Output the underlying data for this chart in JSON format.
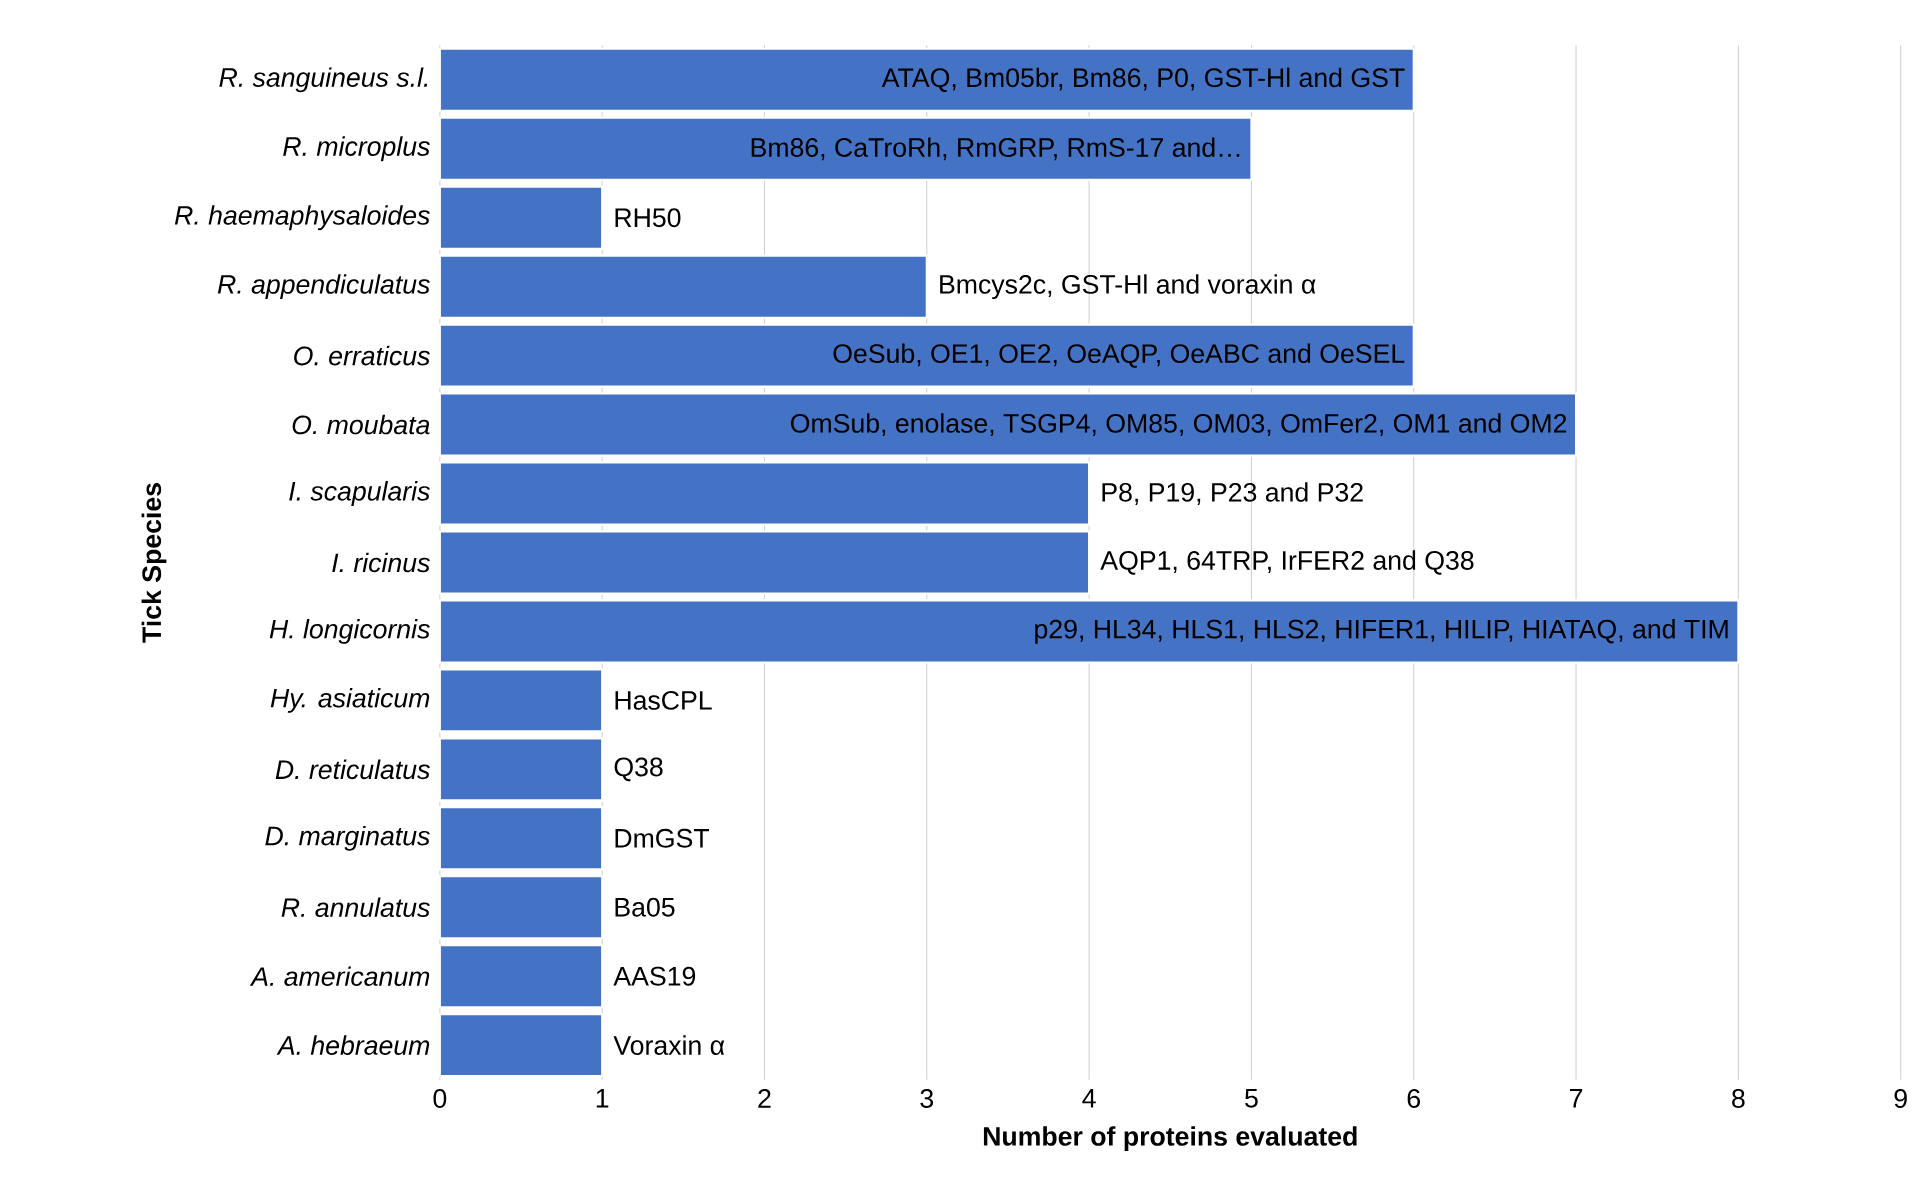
{
  "chart_data": {
    "type": "bar",
    "orientation": "horizontal",
    "ylabel": "Tick Species",
    "xlabel": "Number of proteins evaluated",
    "categories": [
      "R. sanguineus s.l.",
      "R. microplus",
      "R. haemaphysaloides",
      "R. appendiculatus",
      "O. erraticus",
      "O. moubata",
      "I. scapularis",
      "I. ricinus",
      "H. longicornis",
      "Hy. asiaticum",
      "D. reticulatus",
      "D. marginatus",
      "R. annulatus",
      "A. americanum",
      "A. hebraeum"
    ],
    "values": [
      6,
      5,
      1,
      3,
      6,
      7,
      4,
      4,
      8,
      1,
      1,
      1,
      1,
      1,
      1
    ],
    "value_labels": [
      "ATAQ, Bm05br, Bm86, P0, GST-Hl and GST",
      "Bm86, CaTroRh, RmGRP, RmS-17 and…",
      "RH50",
      "Bmcys2c, GST-Hl and voraxin α",
      "OeSub, OE1, OE2, OeAQP, OeABC and OeSEL",
      "OmSub, enolase, TSGP4, OM85, OM03, OmFer2, OM1 and OM2",
      "P8, P19, P23 and P32",
      "AQP1, 64TRP, IrFER2 and Q38",
      "p29, HL34, HLS1, HLS2, HIFER1, HILIP, HIATAQ, and TIM",
      "HasCPL",
      "Q38",
      "DmGST",
      "Ba05",
      "AAS19",
      "Voraxin α"
    ],
    "color": "#4472c4",
    "xlim": [
      0,
      9
    ],
    "xticks": [
      0,
      1,
      2,
      3,
      4,
      5,
      6,
      7,
      8,
      9
    ],
    "grid": "x"
  }
}
